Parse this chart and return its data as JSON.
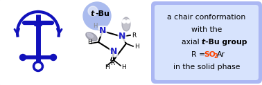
{
  "bg_color": "#ffffff",
  "border_color": "#6699ee",
  "box_bg_outer": "#8899ee",
  "box_bg_inner": "#dde8ff",
  "dark_blue": "#1111bb",
  "ball_color": "#aabbee",
  "n_color": "#2222cc",
  "orange_color": "#ff4400",
  "gray_dark": "#888899",
  "gray_light": "#ccccdd",
  "text_line1": "a chair conformation",
  "text_line2": "with the",
  "text_line5": "in the solid phase"
}
